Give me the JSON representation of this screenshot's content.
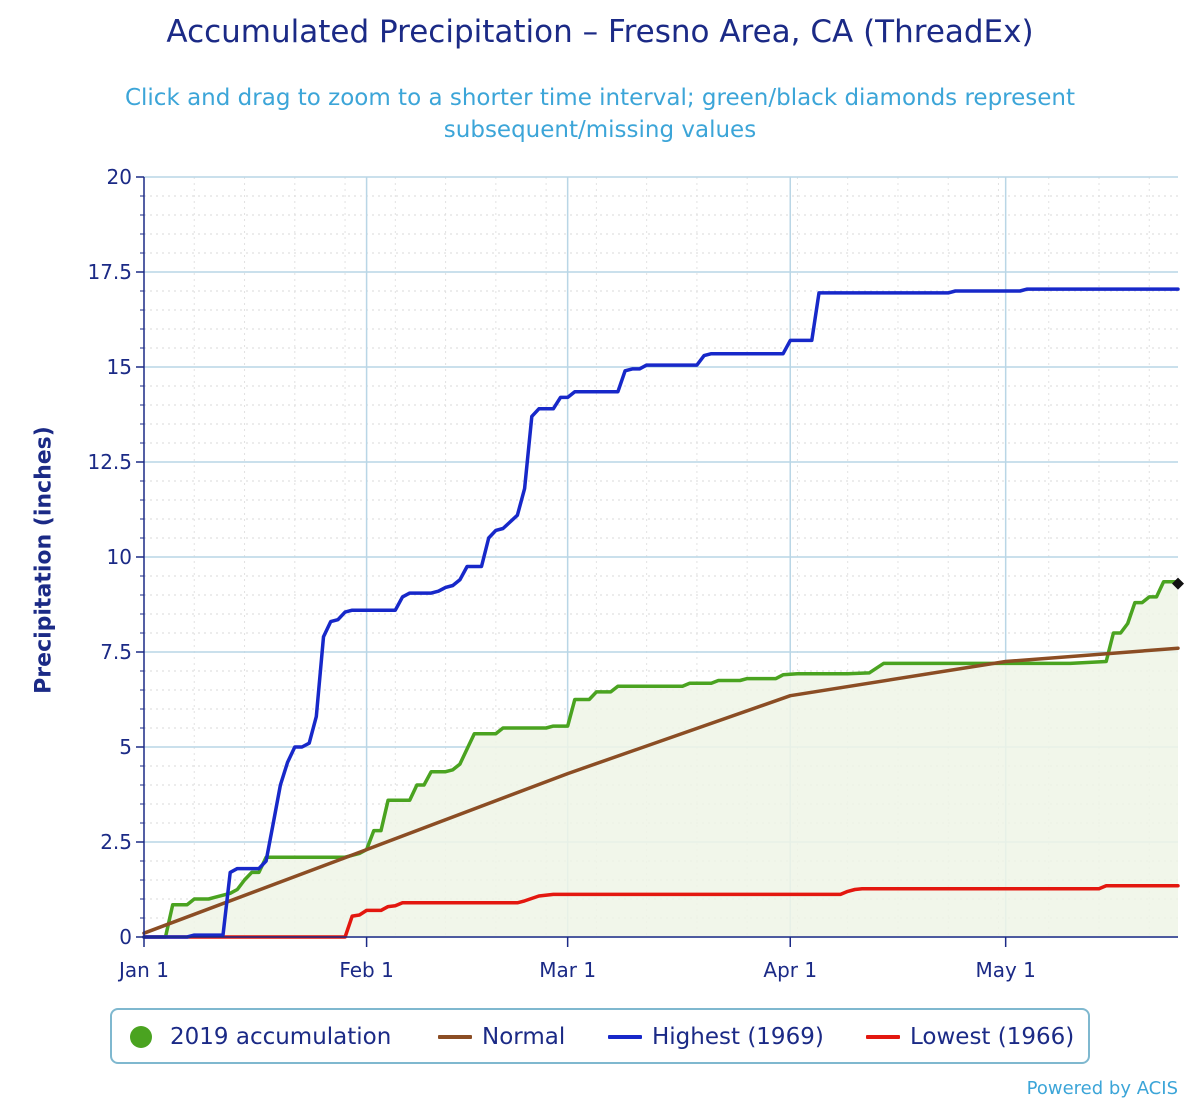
{
  "title": "Accumulated Precipitation – Fresno Area, CA (ThreadEx)",
  "subtitle": "Click and drag to zoom to a shorter time interval; green/black diamonds represent subsequent/missing values",
  "credit": "Powered by ACIS",
  "legend": {
    "items": [
      {
        "label": "2019 accumulation",
        "color": "#4aa320",
        "kind": "dot"
      },
      {
        "label": "Normal",
        "color": "#8b4d24",
        "kind": "line"
      },
      {
        "label": "Highest (1969)",
        "color": "#1728c9",
        "kind": "line"
      },
      {
        "label": "Lowest (1966)",
        "color": "#e3170f",
        "kind": "line"
      }
    ]
  },
  "chart_data": {
    "type": "line",
    "ylabel": "Precipitation (inches)",
    "xlabel": "",
    "ylim": [
      0,
      20
    ],
    "yticks": [
      0,
      2.5,
      5,
      7.5,
      10,
      12.5,
      15,
      17.5,
      20
    ],
    "ytick_labels": [
      "0",
      "2.5",
      "5",
      "7.5",
      "10",
      "12.5",
      "15",
      "17.5",
      "20"
    ],
    "xlim": [
      "Jan 1",
      "May 24"
    ],
    "xticks": [
      {
        "label": "Jan 1",
        "day": 1
      },
      {
        "label": "Feb 1",
        "day": 32
      },
      {
        "label": "Mar 1",
        "day": 60
      },
      {
        "label": "Apr 1",
        "day": 91
      },
      {
        "label": "May 1",
        "day": 121
      }
    ],
    "grid": true,
    "legend_position": "bottom",
    "series": [
      {
        "name": "2019 accumulation",
        "color": "#4aa320",
        "area": true,
        "points": [
          [
            1,
            0
          ],
          [
            4,
            0
          ],
          [
            5,
            0.85
          ],
          [
            7,
            0.85
          ],
          [
            8,
            1.0
          ],
          [
            10,
            1.0
          ],
          [
            11,
            1.05
          ],
          [
            13,
            1.15
          ],
          [
            14,
            1.25
          ],
          [
            15,
            1.5
          ],
          [
            16,
            1.7
          ],
          [
            17,
            1.7
          ],
          [
            18,
            2.1
          ],
          [
            20,
            2.1
          ],
          [
            29,
            2.1
          ],
          [
            31,
            2.2
          ],
          [
            32,
            2.3
          ],
          [
            33,
            2.8
          ],
          [
            34,
            2.8
          ],
          [
            35,
            3.6
          ],
          [
            38,
            3.6
          ],
          [
            39,
            4.0
          ],
          [
            40,
            4.0
          ],
          [
            41,
            4.35
          ],
          [
            43,
            4.35
          ],
          [
            44,
            4.4
          ],
          [
            45,
            4.55
          ],
          [
            46,
            4.95
          ],
          [
            47,
            5.35
          ],
          [
            50,
            5.35
          ],
          [
            51,
            5.5
          ],
          [
            57,
            5.5
          ],
          [
            58,
            5.55
          ],
          [
            60,
            5.55
          ],
          [
            61,
            6.25
          ],
          [
            63,
            6.25
          ],
          [
            64,
            6.45
          ],
          [
            66,
            6.45
          ],
          [
            67,
            6.6
          ],
          [
            76,
            6.6
          ],
          [
            77,
            6.68
          ],
          [
            80,
            6.68
          ],
          [
            81,
            6.75
          ],
          [
            84,
            6.75
          ],
          [
            85,
            6.8
          ],
          [
            89,
            6.8
          ],
          [
            90,
            6.9
          ],
          [
            92,
            6.93
          ],
          [
            99,
            6.93
          ],
          [
            102,
            6.95
          ],
          [
            104,
            7.2
          ],
          [
            113,
            7.2
          ],
          [
            126,
            7.2
          ],
          [
            130,
            7.2
          ],
          [
            135,
            7.25
          ],
          [
            136,
            8.0
          ],
          [
            137,
            8.0
          ],
          [
            138,
            8.25
          ],
          [
            139,
            8.8
          ],
          [
            140,
            8.8
          ],
          [
            141,
            8.95
          ],
          [
            142,
            8.95
          ],
          [
            143,
            9.35
          ],
          [
            145,
            9.35
          ]
        ],
        "marker": {
          "shape": "diamond",
          "color": "#111111",
          "point": [
            145,
            9.3
          ]
        }
      },
      {
        "name": "Normal",
        "color": "#8b4d24",
        "points": [
          [
            1,
            0.1
          ],
          [
            32,
            2.3
          ],
          [
            60,
            4.3
          ],
          [
            91,
            6.35
          ],
          [
            121,
            7.25
          ],
          [
            145,
            7.6
          ]
        ]
      },
      {
        "name": "Highest (1969)",
        "color": "#1728c9",
        "points": [
          [
            1,
            0
          ],
          [
            7,
            0
          ],
          [
            8,
            0.05
          ],
          [
            12,
            0.05
          ],
          [
            13,
            1.7
          ],
          [
            14,
            1.8
          ],
          [
            17,
            1.8
          ],
          [
            18,
            2.0
          ],
          [
            19,
            3.0
          ],
          [
            20,
            4.0
          ],
          [
            21,
            4.6
          ],
          [
            22,
            5.0
          ],
          [
            23,
            5.0
          ],
          [
            24,
            5.1
          ],
          [
            25,
            5.8
          ],
          [
            26,
            7.9
          ],
          [
            27,
            8.3
          ],
          [
            28,
            8.35
          ],
          [
            29,
            8.55
          ],
          [
            30,
            8.6
          ],
          [
            36,
            8.6
          ],
          [
            37,
            8.95
          ],
          [
            38,
            9.05
          ],
          [
            41,
            9.05
          ],
          [
            42,
            9.1
          ],
          [
            43,
            9.2
          ],
          [
            44,
            9.25
          ],
          [
            45,
            9.4
          ],
          [
            46,
            9.75
          ],
          [
            48,
            9.75
          ],
          [
            49,
            10.5
          ],
          [
            50,
            10.7
          ],
          [
            51,
            10.75
          ],
          [
            53,
            11.1
          ],
          [
            54,
            11.8
          ],
          [
            55,
            13.7
          ],
          [
            56,
            13.9
          ],
          [
            58,
            13.9
          ],
          [
            59,
            14.2
          ],
          [
            60,
            14.2
          ],
          [
            61,
            14.35
          ],
          [
            67,
            14.35
          ],
          [
            68,
            14.9
          ],
          [
            69,
            14.95
          ],
          [
            70,
            14.95
          ],
          [
            71,
            15.05
          ],
          [
            78,
            15.05
          ],
          [
            79,
            15.3
          ],
          [
            80,
            15.35
          ],
          [
            90,
            15.35
          ],
          [
            91,
            15.7
          ],
          [
            94,
            15.7
          ],
          [
            95,
            16.95
          ],
          [
            113,
            16.95
          ],
          [
            114,
            17.0
          ],
          [
            123,
            17.0
          ],
          [
            124,
            17.05
          ],
          [
            145,
            17.05
          ]
        ]
      },
      {
        "name": "Lowest (1966)",
        "color": "#e3170f",
        "points": [
          [
            1,
            0
          ],
          [
            29,
            0
          ],
          [
            30,
            0.55
          ],
          [
            31,
            0.58
          ],
          [
            32,
            0.7
          ],
          [
            34,
            0.7
          ],
          [
            35,
            0.8
          ],
          [
            36,
            0.82
          ],
          [
            37,
            0.9
          ],
          [
            53,
            0.9
          ],
          [
            54,
            0.95
          ],
          [
            56,
            1.08
          ],
          [
            58,
            1.12
          ],
          [
            98,
            1.12
          ],
          [
            99,
            1.2
          ],
          [
            100,
            1.25
          ],
          [
            101,
            1.27
          ],
          [
            134,
            1.27
          ],
          [
            135,
            1.35
          ],
          [
            145,
            1.35
          ]
        ]
      }
    ]
  }
}
